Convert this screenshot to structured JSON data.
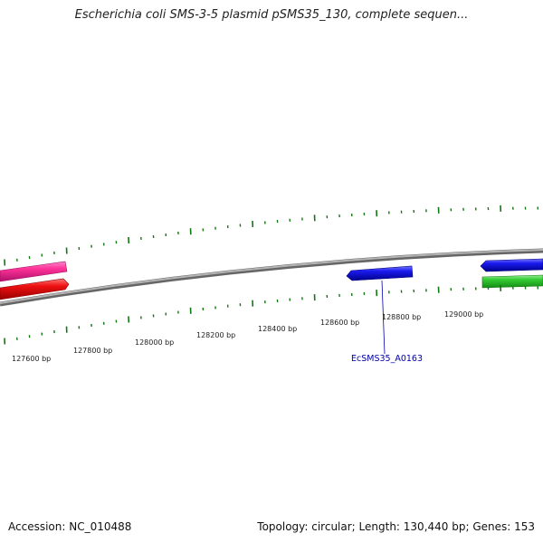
{
  "title": "Escherichia coli SMS-3-5 plasmid pSMS35_130, complete sequen...",
  "footer": {
    "accession": "Accession: NC_010488",
    "summary": "Topology: circular; Length: 130,440 bp; Genes: 153"
  },
  "scale_labels": [
    "127600 bp",
    "127800 bp",
    "128000 bp",
    "128200 bp",
    "128400 bp",
    "128600 bp",
    "128800 bp",
    "129000 bp"
  ],
  "gene_label": "EcSMS35_A0163",
  "colors": {
    "tick": "#117711",
    "backbone": "#8a8a8a",
    "pink": "#ff3399",
    "red": "#ee1111",
    "blue": "#1a1aee",
    "green": "#33cc33"
  }
}
